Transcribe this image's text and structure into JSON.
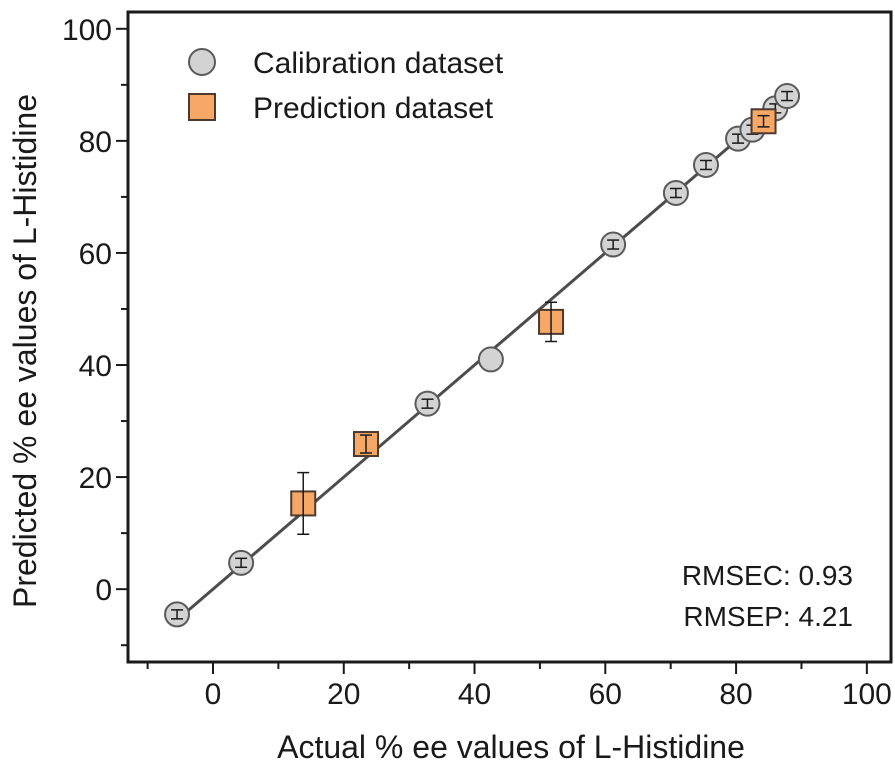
{
  "chart_data": {
    "type": "scatter",
    "xlabel": "Actual % ee values of L-Histidine",
    "ylabel": "Predicted % ee values of L-Histidine",
    "xlim": [
      -13,
      104
    ],
    "ylim": [
      -13,
      103
    ],
    "x_ticks": [
      0,
      20,
      40,
      60,
      80,
      100
    ],
    "y_ticks": [
      0,
      20,
      40,
      60,
      80,
      100
    ],
    "x_tick_labels": [
      "0",
      "20",
      "40",
      "60",
      "80",
      "100"
    ],
    "y_tick_labels": [
      "0",
      "20",
      "40",
      "60",
      "80",
      "100"
    ],
    "grid": false,
    "legend_position": "top-left",
    "series": [
      {
        "name": "Calibration dataset",
        "marker": "circle",
        "color": "#d3d3d3",
        "edge_color": "#5a5a5a",
        "points": [
          {
            "x": -5.5,
            "y": -4.5,
            "err": 0.8
          },
          {
            "x": 4.3,
            "y": 4.7,
            "err": 0.8
          },
          {
            "x": 32.8,
            "y": 33.1,
            "err": 0.8
          },
          {
            "x": 42.5,
            "y": 41.0,
            "err": 0.0
          },
          {
            "x": 61.2,
            "y": 61.5,
            "err": 0.8
          },
          {
            "x": 70.8,
            "y": 70.7,
            "err": 0.8
          },
          {
            "x": 75.4,
            "y": 75.7,
            "err": 0.8
          },
          {
            "x": 80.3,
            "y": 80.4,
            "err": 0.8
          },
          {
            "x": 82.5,
            "y": 82.0,
            "err": 0.8
          },
          {
            "x": 86.0,
            "y": 85.8,
            "err": 0.8
          },
          {
            "x": 87.8,
            "y": 88.0,
            "err": 0.8
          }
        ]
      },
      {
        "name": "Prediction dataset",
        "marker": "square",
        "color": "#f7a867",
        "edge_color": "#4d3a2c",
        "points": [
          {
            "x": 13.8,
            "y": 15.3,
            "err": 5.5
          },
          {
            "x": 23.4,
            "y": 25.9,
            "err": 1.6
          },
          {
            "x": 51.7,
            "y": 47.7,
            "err": 3.5
          },
          {
            "x": 84.2,
            "y": 83.5,
            "err": 1.0
          }
        ]
      }
    ],
    "fit_line": {
      "x1": -5.5,
      "y1": -5.5,
      "x2": 88.0,
      "y2": 88.0,
      "color": "#4d4d4d"
    },
    "annotations": [
      {
        "label": "RMSEC: 0.93"
      },
      {
        "label": "RMSEP: 4.21"
      }
    ]
  }
}
